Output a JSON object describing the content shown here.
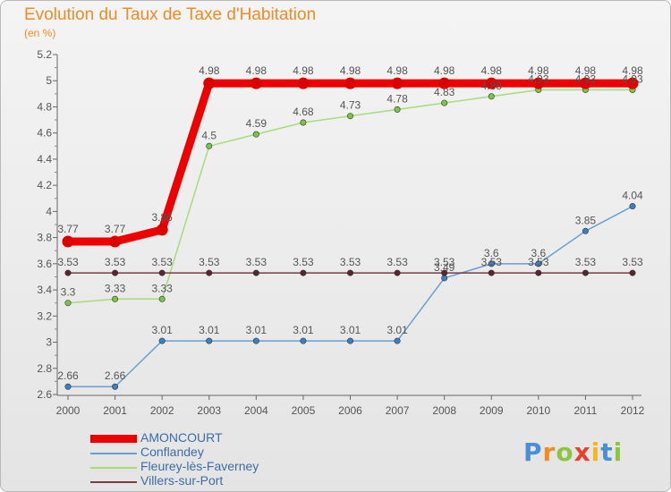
{
  "page": {
    "title": "Evolution du Taux de Taxe d'Habitation",
    "unit_label": "(en %)",
    "logo": {
      "text": "Proxiti",
      "letter_colors": [
        "#4a8fd4",
        "#f08a24",
        "#8cc63f",
        "#e8412e",
        "#f6b71a",
        "#4a8fd4",
        "#8cc63f"
      ]
    }
  },
  "chart_data": {
    "type": "line",
    "title": "Evolution du Taux de Taxe d'Habitation",
    "ylabel": "(en %)",
    "xlabel": "",
    "x": [
      "2000",
      "2001",
      "2002",
      "2003",
      "2004",
      "2005",
      "2006",
      "2007",
      "2008",
      "2009",
      "2010",
      "2011",
      "2012"
    ],
    "y_ticks": [
      "2.6",
      "2.8",
      "3",
      "3.2",
      "3.4",
      "3.6",
      "3.8",
      "4",
      "4.2",
      "4.4",
      "4.6",
      "4.8",
      "5",
      "5.2"
    ],
    "ylim": [
      2.6,
      5.2
    ],
    "grid": false,
    "legend_position": "bottom",
    "series": [
      {
        "name": "Conflandey",
        "color": "#6a9fcf",
        "marker_color": "#3d7fc0",
        "values": [
          2.66,
          2.66,
          3.01,
          3.01,
          3.01,
          3.01,
          3.01,
          3.01,
          3.49,
          3.6,
          3.6,
          3.85,
          4.04
        ],
        "labels": [
          "2.66",
          "2.66",
          "3.01",
          "3.01",
          "3.01",
          "3.01",
          "3.01",
          "3.01",
          "3.49",
          "3.6",
          "3.6",
          "3.85",
          "4.04"
        ]
      },
      {
        "name": "Fleurey-lès-Faverney",
        "color": "#a6dc7c",
        "marker_color": "#7cc444",
        "values": [
          3.3,
          3.33,
          3.33,
          4.5,
          4.59,
          4.68,
          4.73,
          4.78,
          4.83,
          4.88,
          4.93,
          4.93,
          4.93
        ],
        "labels": [
          "3.3",
          "3.33",
          "3.33",
          "4.5",
          "4.59",
          "4.68",
          "4.73",
          "4.78",
          "4.83",
          "4.88",
          "4.93",
          "4.93",
          "4.93"
        ]
      },
      {
        "name": "Villers-sur-Port",
        "color": "#7a3b46",
        "marker_color": "#5a2530",
        "values": [
          3.53,
          3.53,
          3.53,
          3.53,
          3.53,
          3.53,
          3.53,
          3.53,
          3.53,
          3.53,
          3.53,
          3.53,
          3.53
        ],
        "labels": [
          "3.53",
          "3.53",
          "3.53",
          "3.53",
          "3.53",
          "3.53",
          "3.53",
          "3.53",
          "3.53",
          "3.53",
          "3.53",
          "3.53",
          "3.53"
        ]
      },
      {
        "name": "AMONCOURT",
        "color": "#ee0000",
        "marker_color": "#dd0000",
        "thick": true,
        "values": [
          3.77,
          3.77,
          3.86,
          4.98,
          4.98,
          4.98,
          4.98,
          4.98,
          4.98,
          4.98,
          4.98,
          4.98,
          4.98
        ],
        "labels": [
          "3.77",
          "3.77",
          "3.86",
          "4.98",
          "4.98",
          "4.98",
          "4.98",
          "4.98",
          "4.98",
          "4.98",
          "4.98",
          "4.98",
          "4.98"
        ]
      }
    ]
  },
  "legend": {
    "items": [
      {
        "label": "AMONCOURT",
        "color": "#ee0000",
        "thick": true
      },
      {
        "label": "Conflandey",
        "color": "#6a9fcf",
        "thick": false
      },
      {
        "label": "Fleurey-lès-Faverney",
        "color": "#a6dc7c",
        "thick": false
      },
      {
        "label": "Villers-sur-Port",
        "color": "#7a3b46",
        "thick": false
      }
    ]
  }
}
